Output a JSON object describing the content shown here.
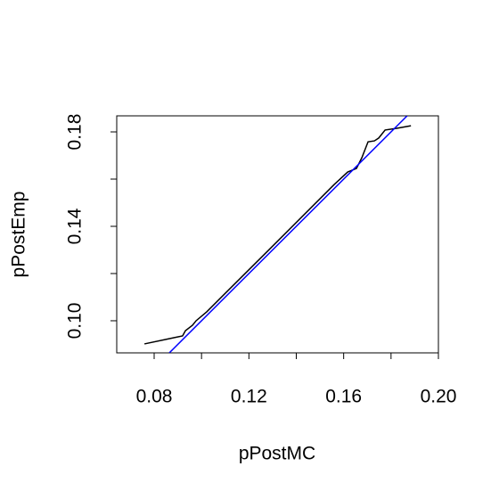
{
  "chart_data": {
    "type": "line",
    "x_label": "pPostMC",
    "y_label": "pPostEmp",
    "xlim": [
      0.0642,
      0.2
    ],
    "ylim": [
      0.0864,
      0.1868
    ],
    "xticks": [
      0.08,
      {
        "value": 0.1,
        "label": null
      },
      0.12,
      {
        "value": 0.14,
        "label": null
      },
      0.16,
      {
        "value": 0.18,
        "label": null
      },
      {
        "value": 0.2,
        "label": "0.20"
      }
    ],
    "yticks": [
      {
        "value": 0.1,
        "label": "0.10"
      },
      {
        "value": 0.12,
        "label": null
      },
      0.14,
      {
        "value": 0.16,
        "label": null
      },
      0.18
    ],
    "series": [
      {
        "color": "#000000",
        "x": [
          0.0759,
          0.0883,
          0.092,
          0.0932,
          0.0962,
          0.0977,
          0.1022,
          0.1278,
          0.156,
          0.1617,
          0.1654,
          0.1677,
          0.1703,
          0.173,
          0.1748,
          0.1775,
          0.1824,
          0.1884
        ],
        "values": [
          0.0902,
          0.0928,
          0.0936,
          0.0958,
          0.0981,
          0.1,
          0.1038,
          0.1294,
          0.1577,
          0.163,
          0.1645,
          0.1691,
          0.1758,
          0.1762,
          0.1774,
          0.1808,
          0.1815,
          0.1826
        ]
      },
      {
        "color": "#0000ff",
        "x": [
          0.0864,
          0.1868
        ],
        "values": [
          0.0864,
          0.1868
        ]
      }
    ]
  }
}
